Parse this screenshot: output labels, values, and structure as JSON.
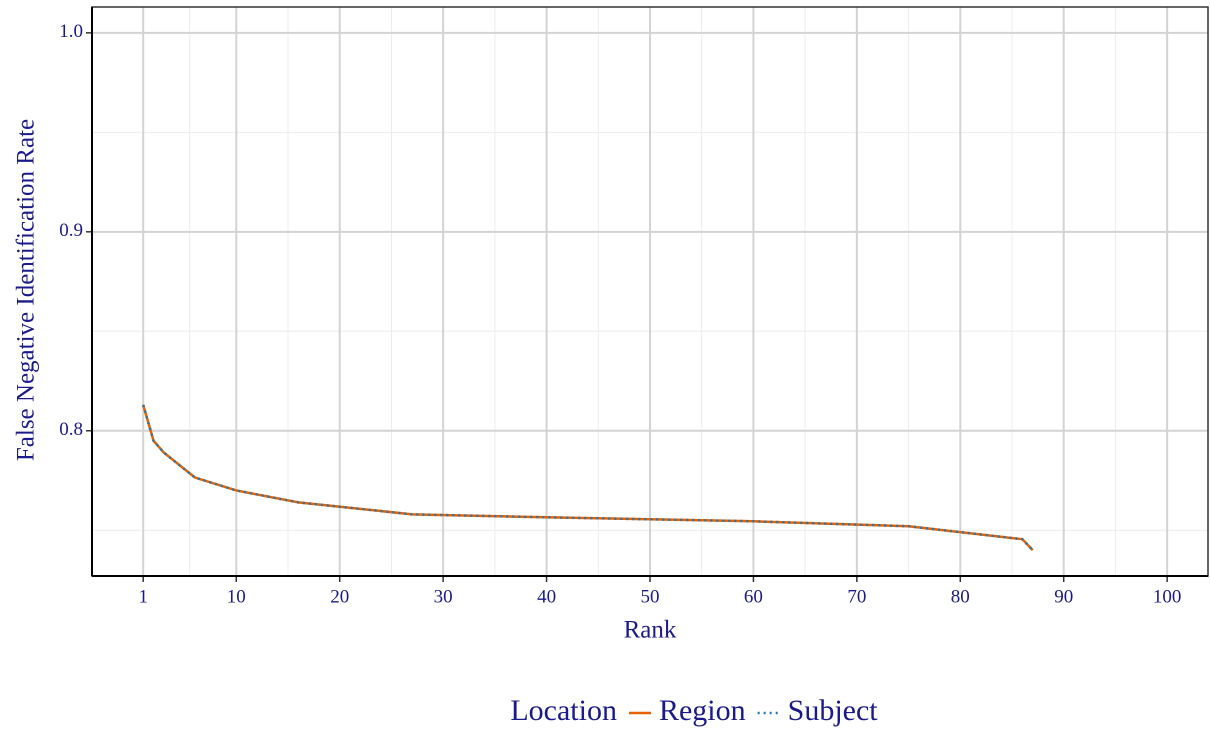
{
  "chart_data": {
    "type": "line",
    "x_label": "Rank",
    "y_label": "False Negative Identification Rate",
    "legend_title": "Location",
    "x": [
      1,
      2,
      3,
      6,
      10,
      16,
      27,
      40,
      50,
      60,
      75,
      86,
      87
    ],
    "series": [
      {
        "name": "Region",
        "color": "#e66101",
        "dash": "solid",
        "values": [
          0.813,
          0.795,
          0.789,
          0.7765,
          0.77,
          0.764,
          0.758,
          0.7565,
          0.7555,
          0.7545,
          0.752,
          0.7455,
          0.74
        ]
      },
      {
        "name": "Subject",
        "color": "#1f78b4",
        "dash": "dotted",
        "values": [
          0.813,
          0.795,
          0.789,
          0.7765,
          0.77,
          0.764,
          0.758,
          0.7565,
          0.7555,
          0.7545,
          0.752,
          0.7455,
          0.74
        ]
      }
    ],
    "xlim": [
      -3.95,
      103.95
    ],
    "ylim": [
      0.727,
      1.013
    ],
    "xticks": [
      1,
      10,
      20,
      30,
      40,
      50,
      60,
      70,
      80,
      90,
      100
    ],
    "yticks": [
      {
        "value": 1,
        "label": "1.0"
      },
      0.9,
      0.8
    ],
    "xminor_ticks": [
      5.5,
      15,
      25,
      35,
      45,
      55,
      65,
      75,
      85,
      95
    ],
    "yminor_ticks": [
      0.75,
      0.85,
      0.95
    ],
    "grid": true,
    "legend_position": "bottom"
  }
}
